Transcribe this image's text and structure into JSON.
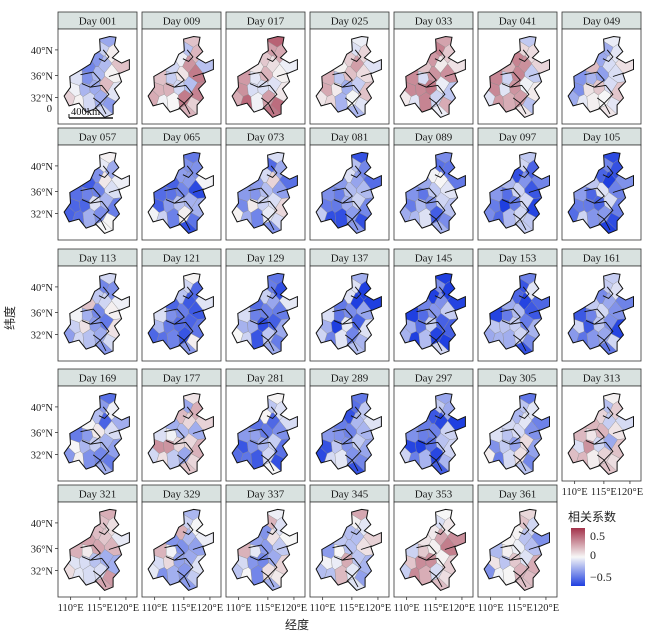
{
  "figure": {
    "x_axis_title": "经度",
    "y_axis_title": "纬度",
    "lon_ticks": [
      "110°E",
      "115°E",
      "120°E"
    ],
    "lat_ticks": [
      "40°N",
      "36°N",
      "32°N"
    ],
    "scale_bar": {
      "zero_label": "0",
      "distance_label": "400km"
    }
  },
  "legend": {
    "title": "相关系数",
    "ticks": [
      "0.5",
      "0",
      "−0.5"
    ],
    "colors": {
      "high": "#a3324a",
      "mid": "#f7f7f7",
      "low": "#1f3fe0"
    }
  },
  "panels": [
    {
      "label": "Day 001",
      "mean": -0.12
    },
    {
      "label": "Day 009",
      "mean": 0.1
    },
    {
      "label": "Day 017",
      "mean": 0.18
    },
    {
      "label": "Day 025",
      "mean": 0.05
    },
    {
      "label": "Day 033",
      "mean": 0.12
    },
    {
      "label": "Day 041",
      "mean": 0.08
    },
    {
      "label": "Day 049",
      "mean": -0.05
    },
    {
      "label": "Day 057",
      "mean": -0.25
    },
    {
      "label": "Day 065",
      "mean": -0.32
    },
    {
      "label": "Day 073",
      "mean": -0.2
    },
    {
      "label": "Day 081",
      "mean": -0.3
    },
    {
      "label": "Day 089",
      "mean": -0.34
    },
    {
      "label": "Day 097",
      "mean": -0.38
    },
    {
      "label": "Day 105",
      "mean": -0.42
    },
    {
      "label": "Day 113",
      "mean": -0.15
    },
    {
      "label": "Day 121",
      "mean": -0.28
    },
    {
      "label": "Day 129",
      "mean": -0.35
    },
    {
      "label": "Day 137",
      "mean": -0.4
    },
    {
      "label": "Day 145",
      "mean": -0.45
    },
    {
      "label": "Day 153",
      "mean": -0.4
    },
    {
      "label": "Day 161",
      "mean": -0.38
    },
    {
      "label": "Day 169",
      "mean": -0.3
    },
    {
      "label": "Day 177",
      "mean": 0.02
    },
    {
      "label": "Day 281",
      "mean": -0.3
    },
    {
      "label": "Day 289",
      "mean": -0.36
    },
    {
      "label": "Day 297",
      "mean": -0.45
    },
    {
      "label": "Day 305",
      "mean": -0.2
    },
    {
      "label": "Day 313",
      "mean": 0.05
    },
    {
      "label": "Day 321",
      "mean": 0.02
    },
    {
      "label": "Day 329",
      "mean": -0.05
    },
    {
      "label": "Day 337",
      "mean": -0.1
    },
    {
      "label": "Day 345",
      "mean": -0.05
    },
    {
      "label": "Day 353",
      "mean": 0.1
    },
    {
      "label": "Day 361",
      "mean": -0.05
    }
  ]
}
